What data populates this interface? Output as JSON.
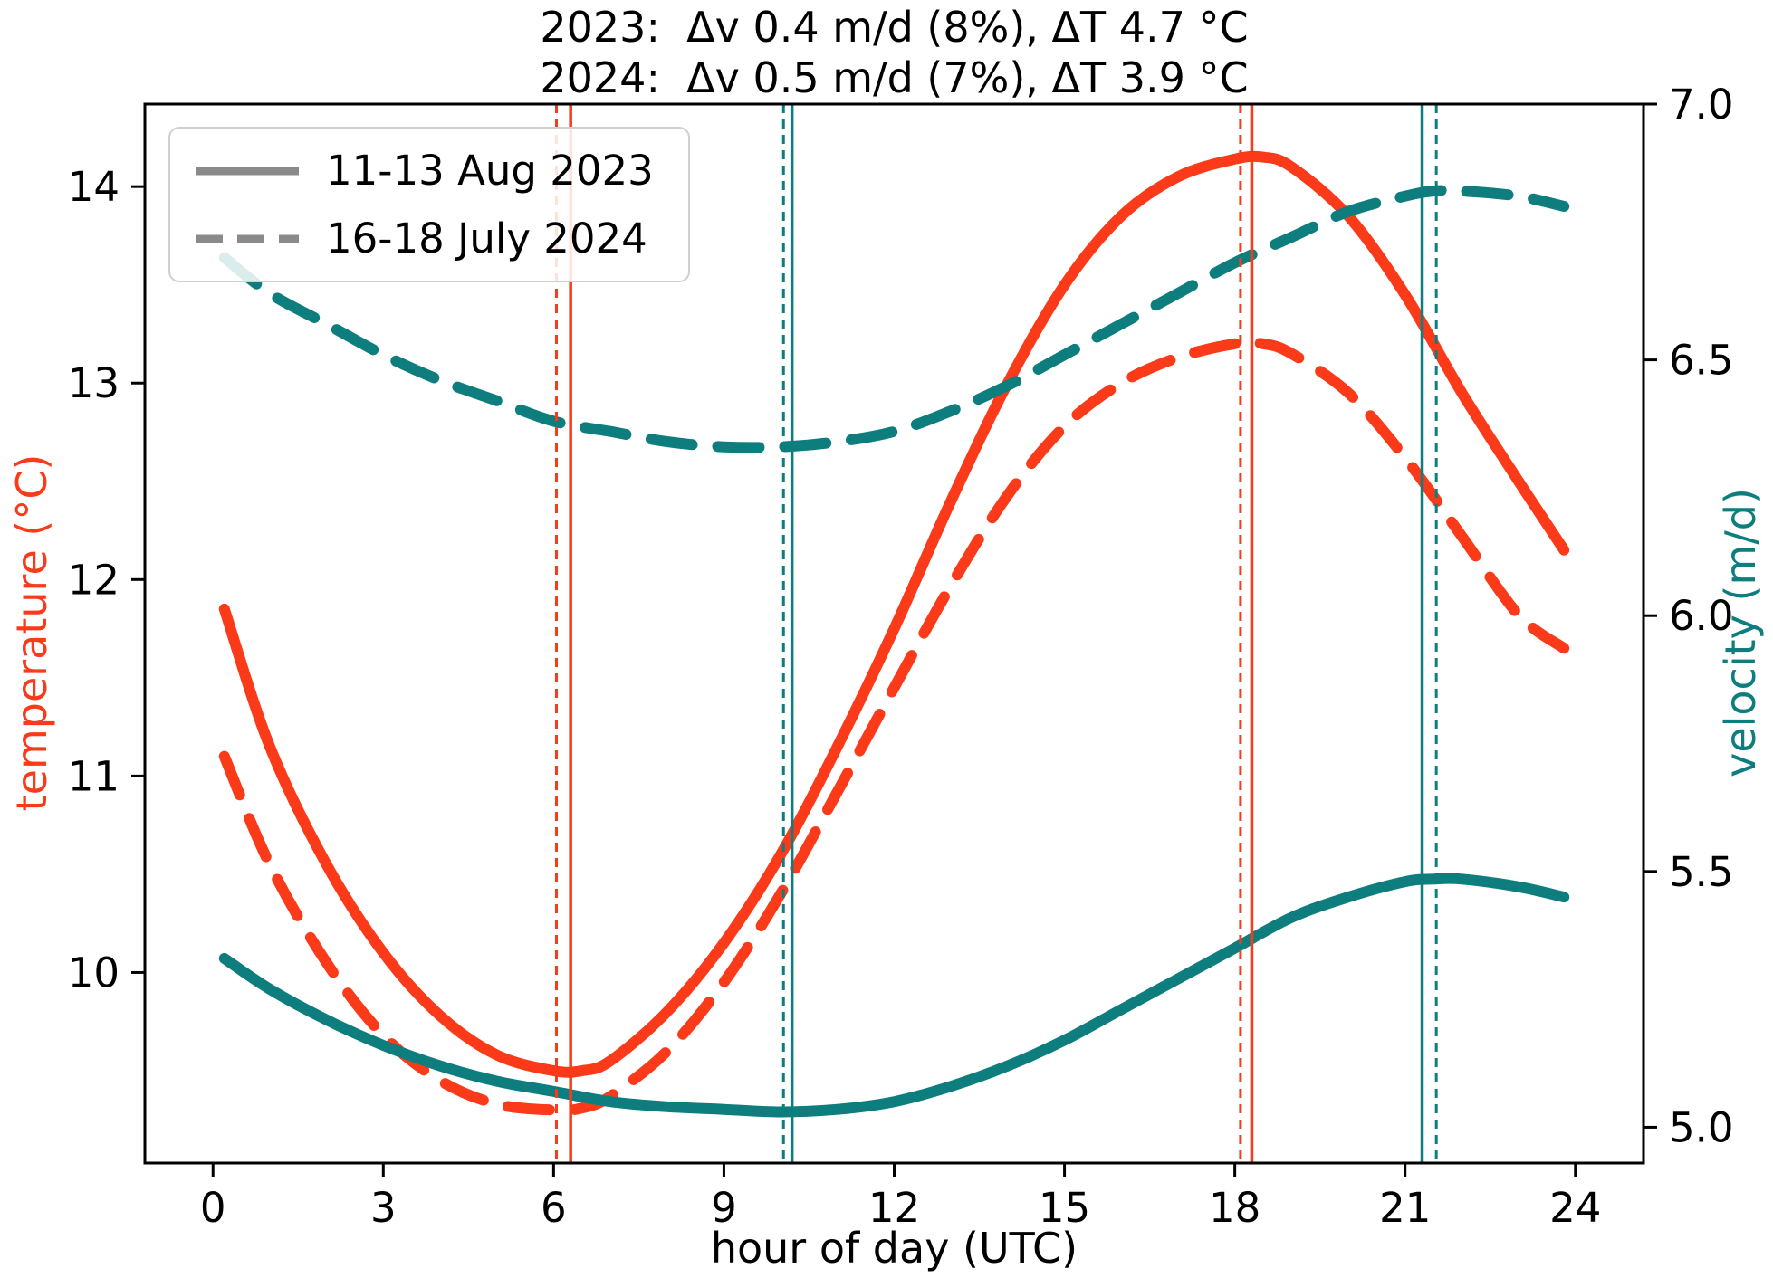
{
  "figure": {
    "title_lines": [
      "2023:  Δv 0.4 m/d (8%), ΔT 4.7 °C",
      "2024:  Δv 0.5 m/d (7%), ΔT 3.9 °C"
    ],
    "xlabel": "hour of day (UTC)",
    "ylabel_left": "temperature (°C)",
    "ylabel_right": "velocity (m/d)"
  },
  "legend": {
    "entries": [
      {
        "label": "11-13 Aug 2023",
        "style": "solid"
      },
      {
        "label": "16-18 July 2024",
        "style": "dashed"
      }
    ],
    "line_color": "#8a8a8a"
  },
  "colors": {
    "temperature": "#fb3a1a",
    "velocity": "#0e7d7e",
    "axis": "#000000"
  },
  "chart_data": {
    "type": "line",
    "title": "2023: Δv 0.4 m/d (8%), ΔT 4.7 °C — 2024: Δv 0.5 m/d (7%), ΔT 3.9 °C",
    "xlabel": "hour of day (UTC)",
    "x_range": [
      -1.2,
      25.2
    ],
    "x_ticks": [
      0,
      3,
      6,
      9,
      12,
      15,
      18,
      21,
      24
    ],
    "temp_axis": {
      "label": "temperature (°C)",
      "color": "#fb3a1a",
      "range": [
        9.03,
        14.42
      ],
      "ticks": [
        "10",
        "11",
        "12",
        "13",
        "14"
      ]
    },
    "vel_axis": {
      "label": "velocity (m/d)",
      "color": "#0e7d7e",
      "range": [
        4.93,
        7.0
      ],
      "ticks": [
        "5.0",
        "5.5",
        "6.0",
        "6.5",
        "7.0"
      ]
    },
    "series": [
      {
        "id": "temperature-2023",
        "name": "temperature 11-13 Aug 2023",
        "axis": "temp",
        "style": "solid",
        "color": "#fb3a1a",
        "x": [
          0.2,
          1,
          2,
          3,
          4,
          5,
          6,
          6.5,
          7,
          8,
          9,
          10,
          11,
          12,
          13,
          14,
          15,
          16,
          17,
          18,
          18.5,
          19,
          20,
          21,
          22,
          23,
          23.8
        ],
        "y": [
          11.85,
          11.15,
          10.55,
          10.1,
          9.78,
          9.58,
          9.5,
          9.5,
          9.55,
          9.8,
          10.15,
          10.6,
          11.15,
          11.75,
          12.4,
          13.0,
          13.5,
          13.85,
          14.05,
          14.14,
          14.15,
          14.1,
          13.85,
          13.45,
          12.95,
          12.5,
          12.15
        ]
      },
      {
        "id": "temperature-2024",
        "name": "temperature 16-18 July 2024",
        "axis": "temp",
        "style": "dashed",
        "color": "#fb3a1a",
        "x": [
          0.2,
          1,
          2,
          3,
          4,
          5,
          6,
          6.5,
          7,
          8,
          9,
          10,
          11,
          12,
          13,
          14,
          15,
          16,
          17,
          18,
          18.5,
          19,
          20,
          21,
          22,
          23,
          23.8
        ],
        "y": [
          11.1,
          10.55,
          10.05,
          9.68,
          9.45,
          9.33,
          9.3,
          9.31,
          9.37,
          9.6,
          9.95,
          10.4,
          10.92,
          11.45,
          11.97,
          12.43,
          12.78,
          13.0,
          13.13,
          13.2,
          13.2,
          13.15,
          12.95,
          12.62,
          12.22,
          11.82,
          11.65
        ]
      },
      {
        "id": "velocity-2023",
        "name": "velocity 11-13 Aug 2023",
        "axis": "vel",
        "style": "solid",
        "color": "#0e7d7e",
        "x": [
          0.2,
          1,
          2,
          3,
          4,
          5,
          6,
          7,
          8,
          9,
          10,
          11,
          12,
          13,
          14,
          15,
          16,
          17,
          18,
          19,
          20,
          21,
          21.5,
          22,
          23,
          23.8
        ],
        "y": [
          5.33,
          5.27,
          5.21,
          5.16,
          5.12,
          5.09,
          5.07,
          5.05,
          5.04,
          5.035,
          5.03,
          5.035,
          5.05,
          5.08,
          5.12,
          5.17,
          5.23,
          5.29,
          5.35,
          5.41,
          5.45,
          5.48,
          5.485,
          5.485,
          5.47,
          5.45
        ]
      },
      {
        "id": "velocity-2024",
        "name": "velocity 16-18 July 2024",
        "axis": "vel",
        "style": "dashed",
        "color": "#0e7d7e",
        "x": [
          0.2,
          1,
          2,
          3,
          4,
          5,
          6,
          7,
          8,
          9,
          10,
          11,
          12,
          13,
          14,
          15,
          16,
          17,
          18,
          19,
          20,
          21,
          21.5,
          22,
          23,
          23.8
        ],
        "y": [
          6.7,
          6.63,
          6.57,
          6.51,
          6.46,
          6.42,
          6.38,
          6.36,
          6.34,
          6.33,
          6.33,
          6.34,
          6.36,
          6.4,
          6.45,
          6.51,
          6.57,
          6.63,
          6.69,
          6.74,
          6.79,
          6.82,
          6.83,
          6.83,
          6.82,
          6.8
        ]
      }
    ],
    "vlines": [
      {
        "x": 6.05,
        "color": "#fb3a1a",
        "style": "dashed",
        "name": "temp-min-2024"
      },
      {
        "x": 6.3,
        "color": "#fb3a1a",
        "style": "solid",
        "name": "temp-min-2023"
      },
      {
        "x": 10.05,
        "color": "#0e7d7e",
        "style": "dashed",
        "name": "vel-min-2024"
      },
      {
        "x": 10.2,
        "color": "#0e7d7e",
        "style": "solid",
        "name": "vel-min-2023"
      },
      {
        "x": 18.1,
        "color": "#fb3a1a",
        "style": "dashed",
        "name": "temp-max-2024"
      },
      {
        "x": 18.3,
        "color": "#fb3a1a",
        "style": "solid",
        "name": "temp-max-2023"
      },
      {
        "x": 21.3,
        "color": "#0e7d7e",
        "style": "solid",
        "name": "vel-max-2023"
      },
      {
        "x": 21.55,
        "color": "#0e7d7e",
        "style": "dashed",
        "name": "vel-max-2024"
      }
    ],
    "legend_position": "upper left",
    "grid": false
  }
}
